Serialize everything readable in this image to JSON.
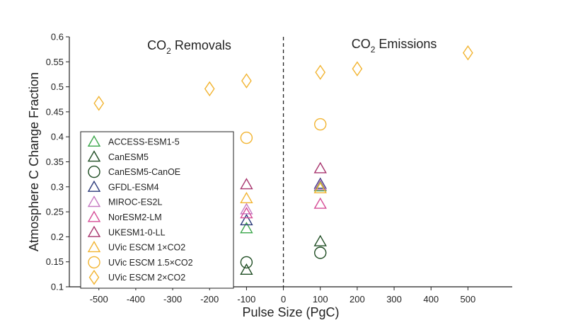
{
  "chart_data": {
    "type": "scatter",
    "xlabel": "Pulse Size (PgC)",
    "ylabel": "Atmosphere C Change Fraction",
    "xlim": [
      -580,
      620
    ],
    "ylim": [
      0.1,
      0.6
    ],
    "xticks": [
      -500,
      -400,
      -300,
      -200,
      -100,
      0,
      100,
      200,
      300,
      400,
      500
    ],
    "yticks": [
      0.1,
      0.15,
      0.2,
      0.25,
      0.3,
      0.35,
      0.4,
      0.45,
      0.5,
      0.55,
      0.6
    ],
    "grid": false,
    "legend_position": "bottom-left",
    "annotations": {
      "removals": {
        "main": "CO",
        "sub": "2",
        "rest": " Removals"
      },
      "emissions": {
        "main": "CO",
        "sub": "2",
        "rest": " Emissions"
      }
    },
    "divider_x": 0,
    "series": [
      {
        "name": "ACCESS-ESM1-5",
        "marker": "triangle",
        "color": "#3aa64a",
        "points": [
          [
            -100,
            0.217
          ],
          [
            100,
            0.301
          ]
        ]
      },
      {
        "name": "CanESM5",
        "marker": "triangle",
        "color": "#1f4d23",
        "points": [
          [
            -100,
            0.134
          ],
          [
            100,
            0.191
          ]
        ]
      },
      {
        "name": "CanESM5-CanOE",
        "marker": "circle",
        "color": "#1f4d23",
        "points": [
          [
            -100,
            0.149
          ],
          [
            100,
            0.168
          ]
        ]
      },
      {
        "name": "GFDL-ESM4",
        "marker": "triangle",
        "color": "#2b3a7a",
        "points": [
          [
            -100,
            0.233
          ],
          [
            100,
            0.306
          ]
        ]
      },
      {
        "name": "MIROC-ES2L",
        "marker": "triangle",
        "color": "#c77ac3",
        "points": [
          [
            -100,
            0.255
          ],
          [
            100,
            0.303
          ]
        ]
      },
      {
        "name": "NorESM2-LM",
        "marker": "triangle",
        "color": "#d64c96",
        "points": [
          [
            -100,
            0.247
          ],
          [
            100,
            0.266
          ]
        ]
      },
      {
        "name": "UKESM1-0-LL",
        "marker": "triangle",
        "color": "#a8356e",
        "points": [
          [
            -100,
            0.305
          ],
          [
            100,
            0.337
          ]
        ]
      },
      {
        "name": "UVic ESCM 1×CO2",
        "marker": "triangle",
        "color": "#f2b431",
        "points": [
          [
            -100,
            0.277
          ],
          [
            100,
            0.297
          ]
        ]
      },
      {
        "name": "UVic ESCM 1.5×CO2",
        "marker": "circle",
        "color": "#f2b431",
        "points": [
          [
            -100,
            0.398
          ],
          [
            100,
            0.425
          ]
        ]
      },
      {
        "name": "UVic ESCM 2×CO2",
        "marker": "diamond",
        "color": "#f2b431",
        "points": [
          [
            -500,
            0.467
          ],
          [
            -200,
            0.496
          ],
          [
            -100,
            0.512
          ],
          [
            100,
            0.529
          ],
          [
            200,
            0.536
          ],
          [
            500,
            0.568
          ]
        ]
      }
    ]
  }
}
